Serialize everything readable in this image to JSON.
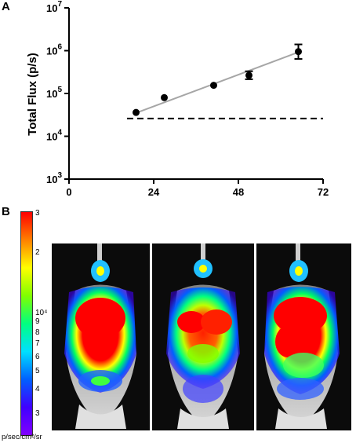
{
  "panel_a_label": "A",
  "panel_b_label": "B",
  "chart_data": {
    "type": "scatter",
    "title": "",
    "xlabel": "",
    "ylabel": "Total Flux (p/s)",
    "yscale": "log",
    "xlim": [
      0,
      72
    ],
    "ylim": [
      1000,
      10000000
    ],
    "x_ticks": [
      {
        "value": 0,
        "label": "0"
      },
      {
        "value": 24,
        "label": "24"
      },
      {
        "value": 48,
        "label": "48"
      },
      {
        "value": 72,
        "label": "72"
      }
    ],
    "y_ticks": [
      {
        "value": 1000,
        "base": "10",
        "exp": "3"
      },
      {
        "value": 10000,
        "base": "10",
        "exp": "4"
      },
      {
        "value": 100000,
        "base": "10",
        "exp": "5"
      },
      {
        "value": 1000000,
        "base": "10",
        "exp": "6"
      },
      {
        "value": 10000000,
        "base": "10",
        "exp": "7"
      }
    ],
    "points": [
      {
        "x": 19,
        "y": 36000,
        "err_low": 34000,
        "err_high": 38000
      },
      {
        "x": 27,
        "y": 80000,
        "err_low": 76000,
        "err_high": 84000
      },
      {
        "x": 41,
        "y": 155000,
        "err_low": 146000,
        "err_high": 165000
      },
      {
        "x": 51,
        "y": 265000,
        "err_low": 215000,
        "err_high": 330000
      },
      {
        "x": 65,
        "y": 950000,
        "err_low": 640000,
        "err_high": 1400000
      }
    ],
    "fit_line": {
      "x": [
        19,
        65
      ],
      "y": [
        35000,
        920000
      ],
      "color": "#a6a6a6"
    },
    "reference_line": {
      "y": 26000,
      "style": "dashed",
      "color": "#000000"
    },
    "grid": false,
    "legend": "none"
  },
  "colorbar": {
    "labels": [
      "3",
      "2",
      "10⁴",
      "9",
      "8",
      "7",
      "6",
      "5",
      "4",
      "3"
    ],
    "unit": "p/sec/cm²/sr",
    "colors": [
      "#ff0000",
      "#ff8000",
      "#ffff00",
      "#80ff00",
      "#00ff80",
      "#00e0ff",
      "#0060ff",
      "#4000ff",
      "#8000ff"
    ]
  }
}
